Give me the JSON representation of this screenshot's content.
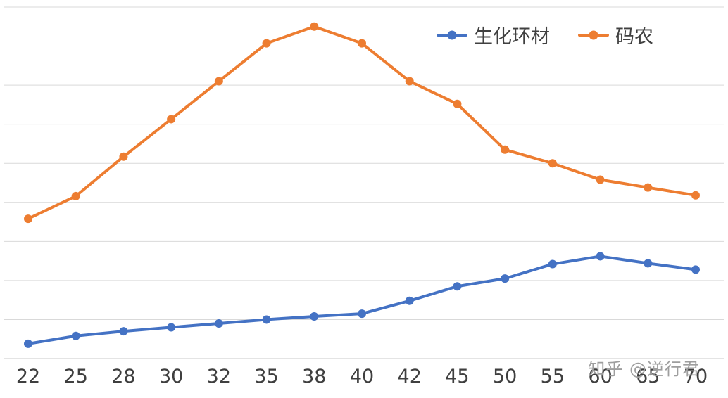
{
  "chart_data": {
    "type": "line",
    "categories": [
      "22",
      "25",
      "28",
      "30",
      "32",
      "35",
      "38",
      "40",
      "42",
      "45",
      "50",
      "55",
      "60",
      "65",
      "70"
    ],
    "series": [
      {
        "name": "生化环材",
        "color": "#4472C4",
        "values": [
          0.38,
          0.58,
          0.7,
          0.8,
          0.9,
          1.0,
          1.08,
          1.15,
          1.48,
          1.85,
          2.05,
          2.42,
          2.62,
          2.44,
          2.28
        ]
      },
      {
        "name": "码农",
        "color": "#ED7D31",
        "values": [
          3.58,
          4.16,
          5.17,
          6.13,
          7.1,
          8.07,
          8.5,
          8.07,
          7.1,
          6.52,
          5.35,
          5.0,
          4.58,
          4.38,
          4.18
        ]
      }
    ],
    "title": "",
    "xlabel": "",
    "ylabel": "",
    "ylim": [
      0,
      9
    ],
    "grid": true,
    "gridline_count": 10,
    "grid_color": "#d9d9d9",
    "axis_label_color": "#3f3f3f",
    "legend_position": "top-right"
  },
  "watermark": "知乎 @逆行君"
}
